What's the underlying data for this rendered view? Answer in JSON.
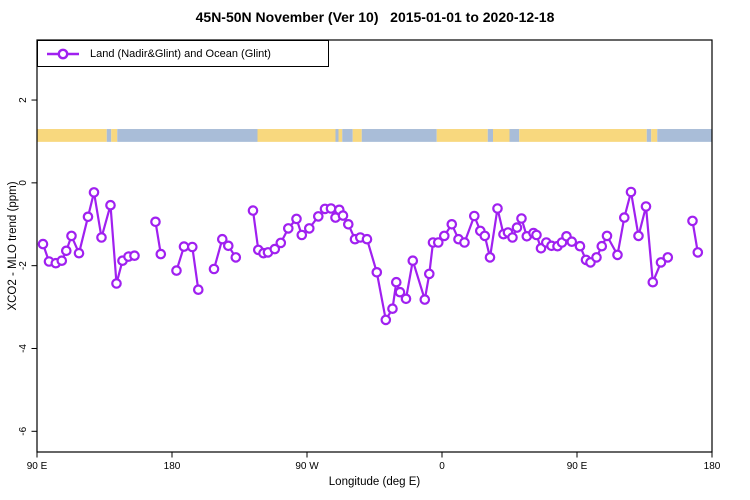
{
  "title": "45N-50N November (Ver 10)   2015-01-01 to 2020-12-18",
  "chart_data": {
    "type": "line",
    "title": "45N-50N November (Ver 10)   2015-01-01 to 2020-12-18",
    "xlabel": "Longitude (deg E)",
    "ylabel": "XCO2 - MLO trend (ppm)",
    "legend_label": "Land (Nadir&Glint) and Ocean (Glint)",
    "legend_position": "top-left",
    "grid": "off",
    "xlim": [
      90,
      540
    ],
    "ylim": [
      -6.5,
      3.45
    ],
    "x_ticks": [
      {
        "deg": 90,
        "label": "90 E"
      },
      {
        "deg": 180,
        "label": "180"
      },
      {
        "deg": 270,
        "label": "90 W"
      },
      {
        "deg": 360,
        "label": "0"
      },
      {
        "deg": 450,
        "label": "90 E"
      },
      {
        "deg": 540,
        "label": "180"
      }
    ],
    "y_ticks": [
      {
        "value": 2,
        "label": "2"
      },
      {
        "value": 0,
        "label": "0"
      },
      {
        "value": -2,
        "label": "-2"
      },
      {
        "value": -4,
        "label": "-4"
      },
      {
        "value": -6,
        "label": "-6"
      }
    ],
    "series": [
      {
        "name": "Land (Nadir&Glint) and Ocean (Glint)",
        "color": "#A020F0",
        "marker": "open-circle",
        "gap_break_deg": 9,
        "points": [
          [
            94,
            -1.48
          ],
          [
            98,
            -1.9
          ],
          [
            102.5,
            -1.94
          ],
          [
            106.5,
            -1.88
          ],
          [
            109.5,
            -1.64
          ],
          [
            113,
            -1.28
          ],
          [
            118,
            -1.7
          ],
          [
            124,
            -0.82
          ],
          [
            128,
            -0.23
          ],
          [
            133,
            -1.32
          ],
          [
            139,
            -0.54
          ],
          [
            143,
            -2.43
          ],
          [
            147,
            -1.88
          ],
          [
            151,
            -1.78
          ],
          [
            155,
            -1.76
          ],
          [
            169,
            -0.94
          ],
          [
            172.5,
            -1.72
          ],
          [
            183,
            -2.12
          ],
          [
            188,
            -1.54
          ],
          [
            193.5,
            -1.55
          ],
          [
            197.5,
            -2.58
          ],
          [
            208,
            -2.08
          ],
          [
            213.5,
            -1.36
          ],
          [
            217.5,
            -1.52
          ],
          [
            222.5,
            -1.8
          ],
          [
            234,
            -0.67
          ],
          [
            237.5,
            -1.62
          ],
          [
            241,
            -1.7
          ],
          [
            244,
            -1.68
          ],
          [
            248.5,
            -1.6
          ],
          [
            252.5,
            -1.45
          ],
          [
            257.5,
            -1.1
          ],
          [
            263,
            -0.87
          ],
          [
            266.5,
            -1.26
          ],
          [
            271.5,
            -1.1
          ],
          [
            277.5,
            -0.81
          ],
          [
            282,
            -0.63
          ],
          [
            286,
            -0.62
          ],
          [
            289,
            -0.84
          ],
          [
            291.5,
            -0.65
          ],
          [
            294,
            -0.79
          ],
          [
            297.5,
            -1.0
          ],
          [
            302,
            -1.36
          ],
          [
            305.5,
            -1.32
          ],
          [
            310,
            -1.36
          ],
          [
            316.5,
            -2.16
          ],
          [
            322.5,
            -3.31
          ],
          [
            327,
            -3.04
          ],
          [
            329.5,
            -2.4
          ],
          [
            332,
            -2.64
          ],
          [
            336,
            -2.8
          ],
          [
            340.5,
            -1.88
          ],
          [
            348.5,
            -2.82
          ],
          [
            351.5,
            -2.2
          ],
          [
            354,
            -1.44
          ],
          [
            357.5,
            -1.44
          ],
          [
            361.5,
            -1.28
          ],
          [
            366.5,
            -1.0
          ],
          [
            371,
            -1.36
          ],
          [
            375,
            -1.44
          ],
          [
            381.5,
            -0.8
          ],
          [
            385.5,
            -1.16
          ],
          [
            388.5,
            -1.28
          ],
          [
            392,
            -1.8
          ],
          [
            397,
            -0.62
          ],
          [
            401,
            -1.24
          ],
          [
            404,
            -1.2
          ],
          [
            407,
            -1.32
          ],
          [
            410,
            -1.08
          ],
          [
            413,
            -0.86
          ],
          [
            416.5,
            -1.29
          ],
          [
            421,
            -1.21
          ],
          [
            423,
            -1.26
          ],
          [
            426,
            -1.58
          ],
          [
            429.5,
            -1.44
          ],
          [
            433,
            -1.52
          ],
          [
            437,
            -1.53
          ],
          [
            440,
            -1.44
          ],
          [
            443,
            -1.29
          ],
          [
            446.5,
            -1.42
          ],
          [
            452,
            -1.53
          ],
          [
            456,
            -1.86
          ],
          [
            459,
            -1.92
          ],
          [
            463,
            -1.8
          ],
          [
            466.5,
            -1.53
          ],
          [
            470,
            -1.28
          ],
          [
            477,
            -1.74
          ],
          [
            481.5,
            -0.84
          ],
          [
            486,
            -0.22
          ],
          [
            491,
            -1.28
          ],
          [
            496,
            -0.57
          ],
          [
            500.5,
            -2.4
          ],
          [
            506,
            -1.92
          ],
          [
            510.5,
            -1.8
          ],
          [
            527,
            -0.92
          ],
          [
            530.5,
            -1.68
          ]
        ]
      }
    ],
    "land_ocean_band": {
      "description": "land/ocean strip vs longitude",
      "y_range": [
        0.99,
        1.3
      ],
      "land_color": "#F8D87E",
      "ocean_color": "#A9BDD8",
      "intervals": [
        {
          "from": 90,
          "to": 136.5,
          "surface": "land"
        },
        {
          "from": 136.5,
          "to": 139.5,
          "surface": "ocean"
        },
        {
          "from": 139.5,
          "to": 143.5,
          "surface": "land"
        },
        {
          "from": 143.5,
          "to": 237,
          "surface": "ocean"
        },
        {
          "from": 237,
          "to": 289,
          "surface": "land"
        },
        {
          "from": 289,
          "to": 291,
          "surface": "ocean"
        },
        {
          "from": 291,
          "to": 293.5,
          "surface": "land"
        },
        {
          "from": 293.5,
          "to": 300.5,
          "surface": "ocean"
        },
        {
          "from": 300.5,
          "to": 306.5,
          "surface": "land"
        },
        {
          "from": 306.5,
          "to": 356.5,
          "surface": "ocean"
        },
        {
          "from": 356.5,
          "to": 390.5,
          "surface": "land"
        },
        {
          "from": 390.5,
          "to": 394,
          "surface": "ocean"
        },
        {
          "from": 394,
          "to": 405,
          "surface": "land"
        },
        {
          "from": 405,
          "to": 411.5,
          "surface": "ocean"
        },
        {
          "from": 411.5,
          "to": 496.5,
          "surface": "land"
        },
        {
          "from": 496.5,
          "to": 499.5,
          "surface": "ocean"
        },
        {
          "from": 499.5,
          "to": 503.5,
          "surface": "land"
        },
        {
          "from": 503.5,
          "to": 540,
          "surface": "ocean"
        }
      ]
    }
  }
}
